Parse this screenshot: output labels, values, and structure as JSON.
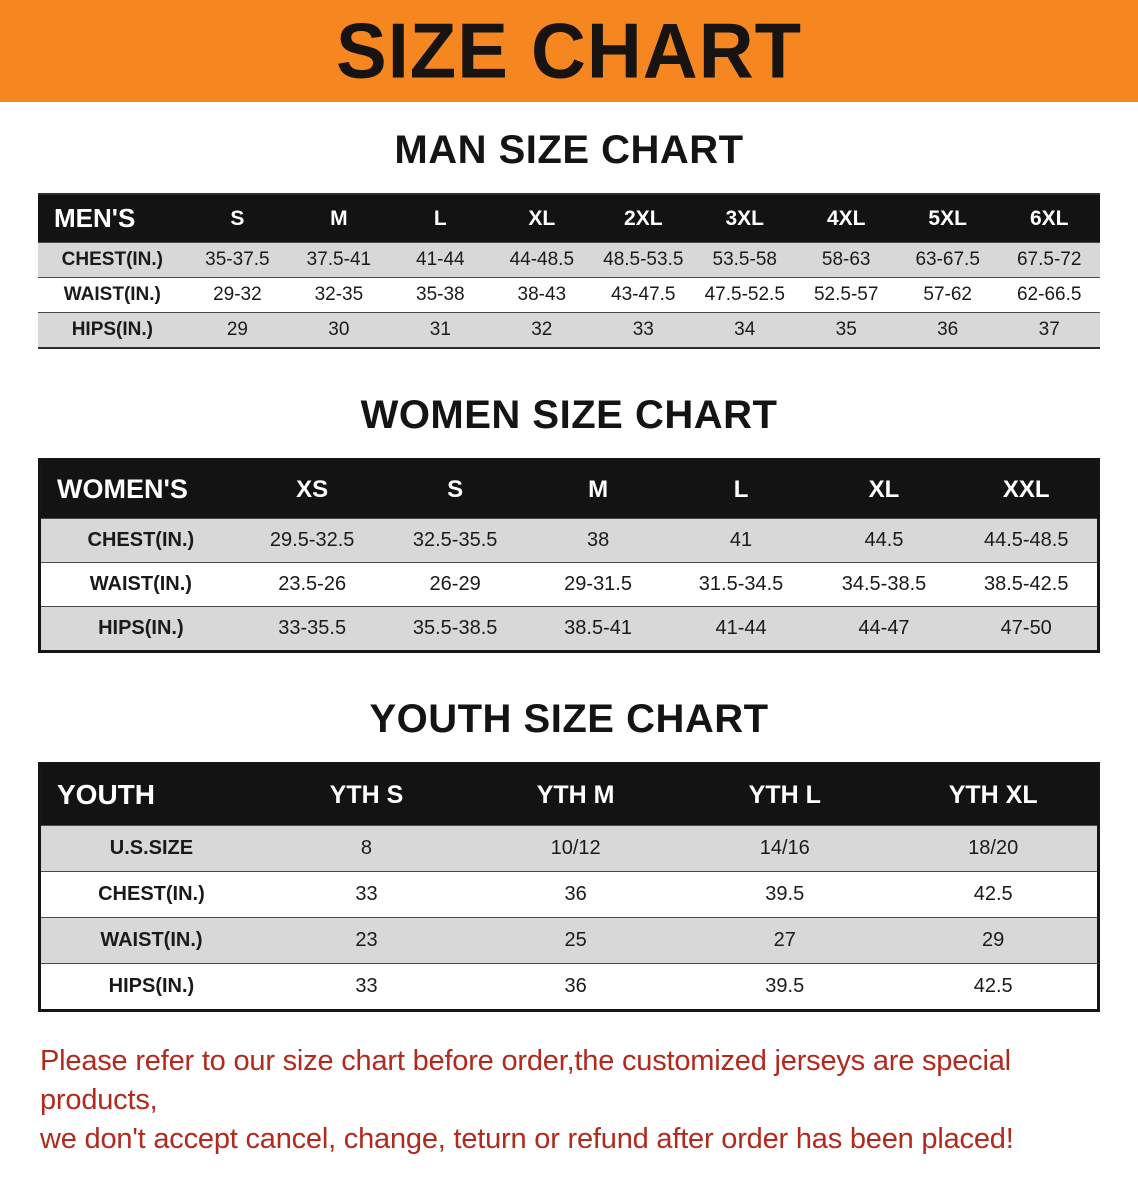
{
  "banner": {
    "title": "SIZE CHART",
    "bg_color": "#f6861f"
  },
  "sections": [
    {
      "id": "men-size-chart",
      "heading": "MAN SIZE CHART",
      "css_class": "t-men",
      "columns": [
        "MEN'S",
        "S",
        "M",
        "L",
        "XL",
        "2XL",
        "3XL",
        "4XL",
        "5XL",
        "6XL"
      ],
      "rows": [
        {
          "label": "CHEST(IN.)",
          "values": [
            "35-37.5",
            "37.5-41",
            "41-44",
            "44-48.5",
            "48.5-53.5",
            "53.5-58",
            "58-63",
            "63-67.5",
            "67.5-72"
          ]
        },
        {
          "label": "WAIST(IN.)",
          "values": [
            "29-32",
            "32-35",
            "35-38",
            "38-43",
            "43-47.5",
            "47.5-52.5",
            "52.5-57",
            "57-62",
            "62-66.5"
          ]
        },
        {
          "label": "HIPS(IN.)",
          "values": [
            "29",
            "30",
            "31",
            "32",
            "33",
            "34",
            "35",
            "36",
            "37"
          ]
        }
      ]
    },
    {
      "id": "women-size-chart",
      "heading": "WOMEN SIZE CHART",
      "css_class": "t-women",
      "columns": [
        "WOMEN'S",
        "XS",
        "S",
        "M",
        "L",
        "XL",
        "XXL"
      ],
      "rows": [
        {
          "label": "CHEST(IN.)",
          "values": [
            "29.5-32.5",
            "32.5-35.5",
            "38",
            "41",
            "44.5",
            "44.5-48.5"
          ]
        },
        {
          "label": "WAIST(IN.)",
          "values": [
            "23.5-26",
            "26-29",
            "29-31.5",
            "31.5-34.5",
            "34.5-38.5",
            "38.5-42.5"
          ]
        },
        {
          "label": "HIPS(IN.)",
          "values": [
            "33-35.5",
            "35.5-38.5",
            "38.5-41",
            "41-44",
            "44-47",
            "47-50"
          ]
        }
      ]
    },
    {
      "id": "youth-size-chart",
      "heading": "YOUTH SIZE CHART",
      "css_class": "t-youth",
      "columns": [
        "YOUTH",
        "YTH S",
        "YTH M",
        "YTH L",
        "YTH XL"
      ],
      "rows": [
        {
          "label": "U.S.SIZE",
          "values": [
            "8",
            "10/12",
            "14/16",
            "18/20"
          ]
        },
        {
          "label": "CHEST(IN.)",
          "values": [
            "33",
            "36",
            "39.5",
            "42.5"
          ]
        },
        {
          "label": "WAIST(IN.)",
          "values": [
            "23",
            "25",
            "27",
            "29"
          ]
        },
        {
          "label": "HIPS(IN.)",
          "values": [
            "33",
            "36",
            "39.5",
            "42.5"
          ]
        }
      ]
    }
  ],
  "footer": {
    "lines": [
      "Please refer to our size chart before order,the customized jerseys are special products,",
      "we don't accept cancel, change, teturn or refund after order has been placed!"
    ],
    "text_color": "#b2291d"
  }
}
